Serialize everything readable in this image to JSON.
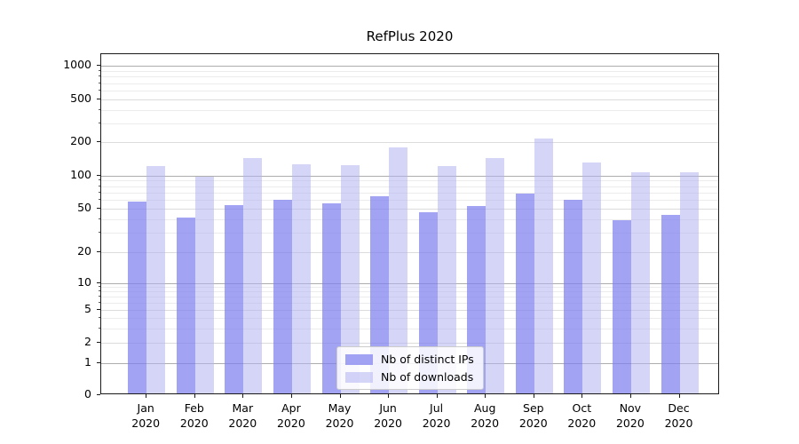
{
  "title": "RefPlus 2020",
  "chart_data": {
    "type": "bar",
    "title": "RefPlus 2020",
    "scale": "symlog",
    "grid": true,
    "categories": [
      "Jan",
      "Feb",
      "Mar",
      "Apr",
      "May",
      "Jun",
      "Jul",
      "Aug",
      "Sep",
      "Oct",
      "Nov",
      "Dec"
    ],
    "x_sublabel": "2020",
    "series": [
      {
        "name": "Nb of distinct IPs",
        "color": "rgba(128,128,240,0.72)",
        "color_hex_effective": "#a6a6f3",
        "values": [
          56,
          40,
          52,
          58,
          54,
          62,
          45,
          51,
          66,
          58,
          38,
          42
        ]
      },
      {
        "name": "Nb of downloads",
        "color": "rgba(179,179,242,0.55)",
        "color_hex_effective": "#d9d9f8",
        "values": [
          117,
          94,
          140,
          121,
          120,
          172,
          117,
          139,
          210,
          126,
          104,
          103
        ]
      }
    ],
    "yticks": [
      0,
      1,
      2,
      5,
      10,
      20,
      50,
      100,
      200,
      500,
      1000
    ],
    "ylim": [
      0,
      1280
    ],
    "legend": {
      "entries": [
        "Nb of distinct IPs",
        "Nb of downloads"
      ],
      "position": "lower-center"
    }
  }
}
